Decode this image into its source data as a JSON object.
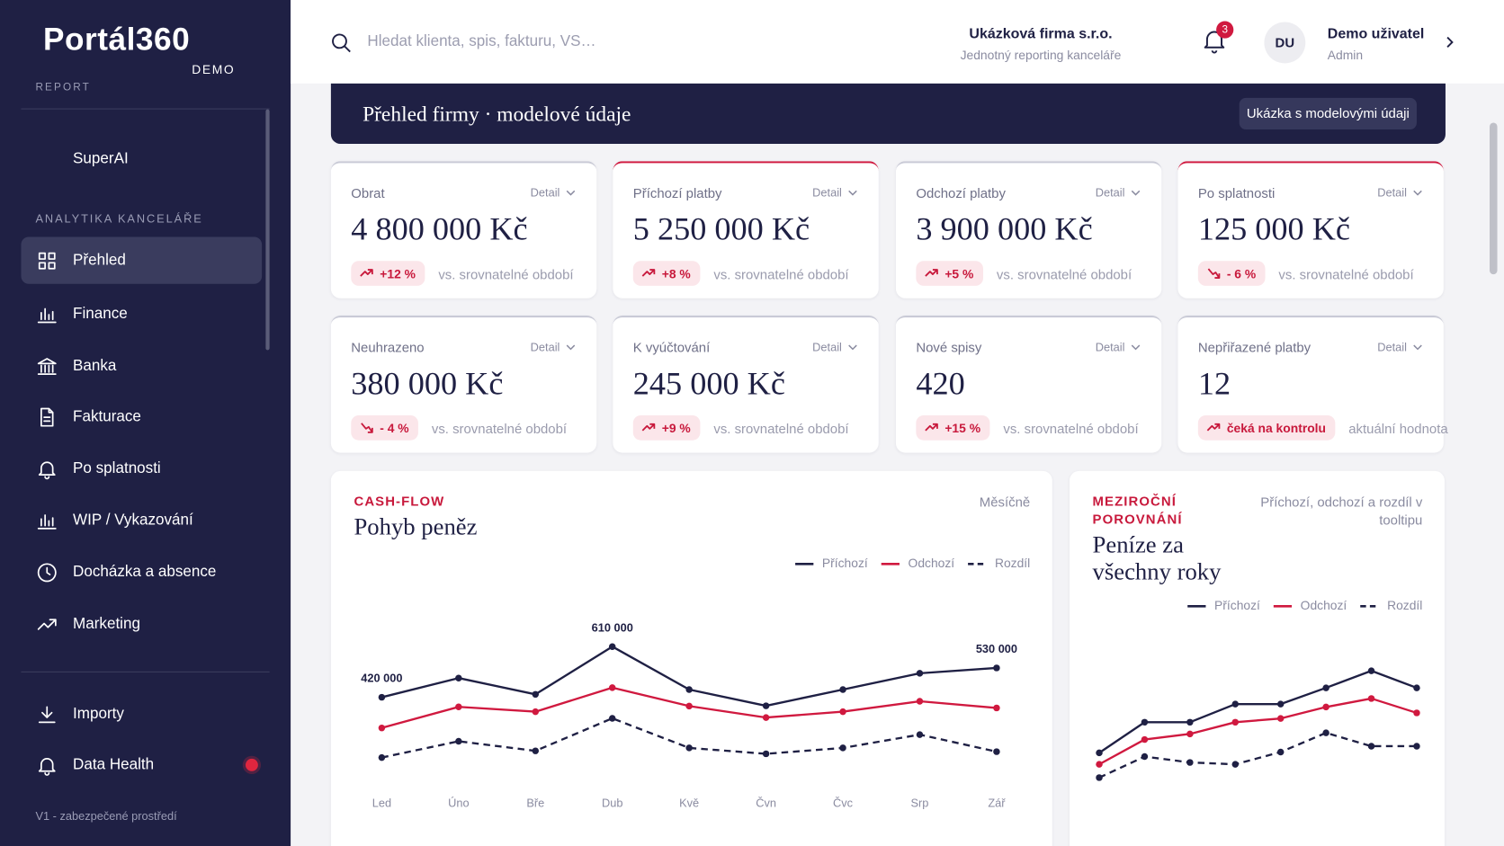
{
  "sidebar": {
    "brand": "Portál360",
    "edition": "DEMO",
    "tag": "REPORT",
    "top_item": "SuperAI",
    "section": "ANALYTIKA KANCELÁŘE",
    "items": [
      "Přehled",
      "Finance",
      "Banka",
      "Fakturace",
      "Po splatnosti",
      "WIP / Vykazování",
      "Docházka a absence",
      "Marketing"
    ],
    "bottom_items": [
      "Importy",
      "Data Health"
    ],
    "footer": "V1 - zabezpečené prostředí"
  },
  "header": {
    "search_placeholder": "Hledat klienta, spis, fakturu, VS…",
    "company": "Ukázková firma s.r.o.",
    "company_sub": "Jednotný reporting kanceláře",
    "notifications": 3,
    "avatar": "DU",
    "user": "Demo uživatel",
    "role": "Admin"
  },
  "banner": {
    "title": "Přehled firmy · modelové údaje",
    "button": "Ukázka s modelovými údaji"
  },
  "kpis": [
    {
      "label": "Obrat",
      "detail": "Detail",
      "value": "4 800 000 Kč",
      "change": "+12 %",
      "trend": "up",
      "note": "vs. srovnatelné období",
      "highlight": false
    },
    {
      "label": "Příchozí platby",
      "detail": "Detail",
      "value": "5 250 000 Kč",
      "change": "+8 %",
      "trend": "up",
      "note": "vs. srovnatelné období",
      "highlight": true
    },
    {
      "label": "Odchozí platby",
      "detail": "Detail",
      "value": "3 900 000 Kč",
      "change": "+5 %",
      "trend": "up",
      "note": "vs. srovnatelné období",
      "highlight": false
    },
    {
      "label": "Po splatnosti",
      "detail": "Detail",
      "value": "125 000 Kč",
      "change": "- 6 %",
      "trend": "down",
      "note": "vs. srovnatelné období",
      "highlight": true
    },
    {
      "label": "Neuhrazeno",
      "detail": "Detail",
      "value": "380 000 Kč",
      "change": "- 4 %",
      "trend": "down",
      "note": "vs. srovnatelné období",
      "highlight": false
    },
    {
      "label": "K vyúčtování",
      "detail": "Detail",
      "value": "245 000 Kč",
      "change": "+9 %",
      "trend": "up",
      "note": "vs. srovnatelné období",
      "highlight": false
    },
    {
      "label": "Nové spisy",
      "detail": "Detail",
      "value": "420",
      "change": "+15 %",
      "trend": "up",
      "note": "vs. srovnatelné období",
      "highlight": false
    },
    {
      "label": "Nepřiřazené platby",
      "detail": "Detail",
      "value": "12",
      "change": "čeká na kontrolu",
      "trend": "up",
      "note": "aktuální hodnota",
      "highlight": false
    }
  ],
  "chart_data": [
    {
      "type": "line",
      "kicker": "CASH-FLOW",
      "title": "Pohyb peněz",
      "period": "Měsíčně",
      "categories": [
        "Led",
        "Úno",
        "Bře",
        "Dub",
        "Kvě",
        "Čvn",
        "Čvc",
        "Srp",
        "Zář"
      ],
      "ylim": [
        150000,
        650000
      ],
      "series": [
        {
          "name": "Příchozí",
          "color": "#1f2044",
          "dashed": false,
          "values": [
            420000,
            492000,
            431000,
            610000,
            449000,
            388000,
            449000,
            510000,
            530000
          ],
          "value_labels": [
            "420 000",
            null,
            null,
            "610 000",
            null,
            null,
            null,
            null,
            "530 000"
          ]
        },
        {
          "name": "Odchozí",
          "color": "#d0193f",
          "dashed": false,
          "values": [
            305000,
            384000,
            366000,
            456000,
            387000,
            344000,
            366000,
            405000,
            380000
          ]
        },
        {
          "name": "Rozdíl",
          "color": "#1f2044",
          "dashed": true,
          "values": [
            194000,
            255000,
            219000,
            341000,
            230000,
            208000,
            230000,
            280000,
            216000
          ]
        }
      ]
    },
    {
      "type": "line",
      "kicker": "MEZIROČNÍ POROVNÁNÍ",
      "title": "Peníze za všechny roky",
      "period": "Příchozí, odchozí a rozdíl v tooltipu",
      "categories": [
        null,
        null,
        null,
        null,
        null,
        null,
        null,
        null
      ],
      "ylim": [
        100000,
        550000
      ],
      "series": [
        {
          "name": "Příchozí",
          "color": "#1f2044",
          "dashed": false,
          "values": [
            212000,
            327000,
            327000,
            395000,
            395000,
            456000,
            520000,
            456000
          ]
        },
        {
          "name": "Odchozí",
          "color": "#d0193f",
          "dashed": false,
          "values": [
            169000,
            262000,
            283000,
            327000,
            341000,
            384000,
            416000,
            362000
          ]
        },
        {
          "name": "Rozdíl",
          "color": "#1f2044",
          "dashed": true,
          "values": [
            119000,
            198000,
            176000,
            169000,
            215000,
            287000,
            237000,
            237000
          ]
        }
      ]
    }
  ]
}
